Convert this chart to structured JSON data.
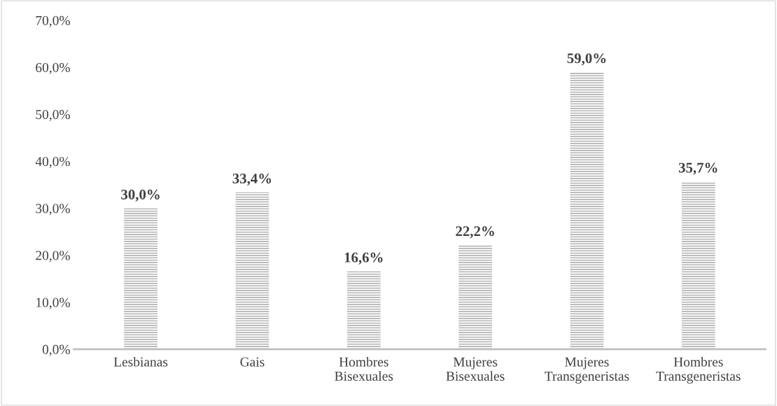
{
  "chart_data": {
    "type": "bar",
    "categories": [
      "Lesbianas",
      "Gais",
      "Hombres\nBisexuales",
      "Mujeres\nBisexuales",
      "Mujeres\nTransgeneristas",
      "Hombres\nTransgeneristas"
    ],
    "values": [
      30.0,
      33.4,
      16.6,
      22.2,
      59.0,
      35.7
    ],
    "value_labels": [
      "30,0%",
      "33,4%",
      "16,6%",
      "22,2%",
      "59,0%",
      "35,7%"
    ],
    "color": "#a6a6a6",
    "ylim": [
      0,
      70
    ],
    "yticks": [
      {
        "value": 0,
        "label": "0,0%"
      },
      {
        "value": 10,
        "label": "10,0%"
      },
      {
        "value": 20,
        "label": "20,0%"
      },
      {
        "value": 30,
        "label": "30,0%"
      },
      {
        "value": 40,
        "label": "40,0%"
      },
      {
        "value": 50,
        "label": "50,0%"
      },
      {
        "value": 60,
        "label": "60,0%"
      },
      {
        "value": 70,
        "label": "70,0%"
      }
    ],
    "grid": false,
    "legend": false
  }
}
